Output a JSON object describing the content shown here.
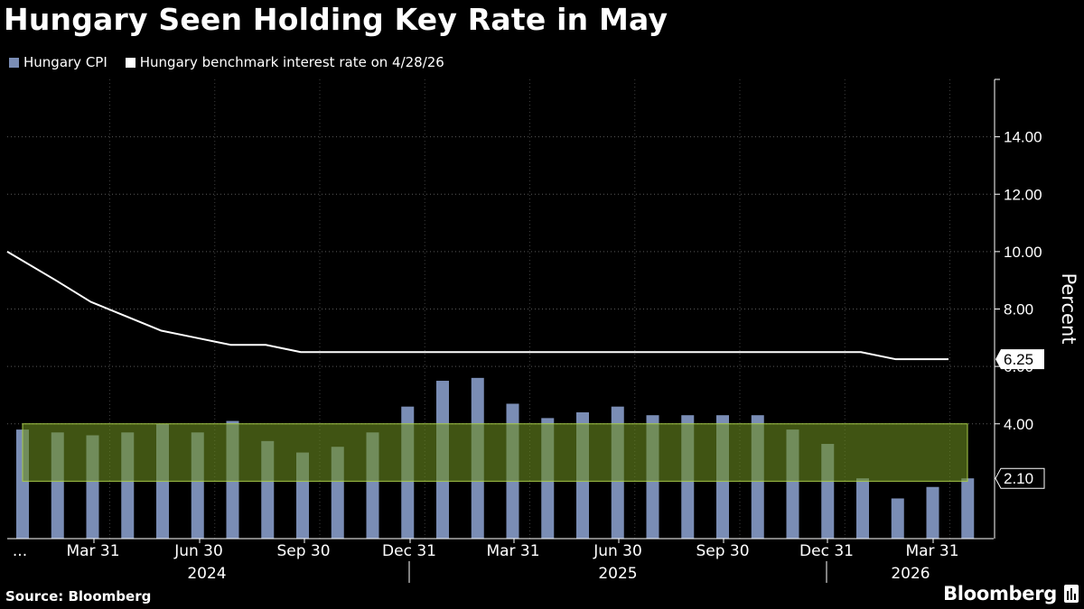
{
  "title": "Hungary Seen Holding Key Rate in May",
  "legend": [
    {
      "label": "Hungary CPI",
      "color": "#7a8db5"
    },
    {
      "label": "Hungary benchmark interest rate on 4/28/26",
      "color": "#ffffff"
    }
  ],
  "source": "Source: Bloomberg",
  "brand": "Bloomberg",
  "chart_data": {
    "type": "bar",
    "ylabel": "Percent",
    "ylim": [
      0,
      16
    ],
    "yticks": [
      "4.00",
      "6.00",
      "8.00",
      "10.00",
      "12.00",
      "14.00"
    ],
    "x_tick_labels": [
      "...",
      "Mar 31",
      "Jun 30",
      "Sep 30",
      "Dec 31",
      "Mar 31",
      "Jun 30",
      "Sep 30",
      "Dec 31",
      "Mar 31"
    ],
    "year_labels": [
      "2024",
      "2025",
      "2026"
    ],
    "target_band": {
      "low": 2,
      "high": 4,
      "color": "#6b8c1f"
    },
    "value_labels": {
      "rate": "6.25",
      "cpi": "2.10"
    },
    "series": [
      {
        "name": "Hungary CPI",
        "type": "bar",
        "color": "#7a8db5",
        "x": [
          "Jan 2024",
          "Feb 2024",
          "Mar 2024",
          "Apr 2024",
          "May 2024",
          "Jun 2024",
          "Jul 2024",
          "Aug 2024",
          "Sep 2024",
          "Oct 2024",
          "Nov 2024",
          "Dec 2024",
          "Jan 2025",
          "Feb 2025",
          "Mar 2025",
          "Apr 2025",
          "May 2025",
          "Jun 2025",
          "Jul 2025",
          "Aug 2025",
          "Sep 2025",
          "Oct 2025",
          "Nov 2025",
          "Dec 2025",
          "Jan 2026",
          "Feb 2026",
          "Mar 2026",
          "Apr 2026"
        ],
        "values": [
          3.8,
          3.7,
          3.6,
          3.7,
          4.0,
          3.7,
          4.1,
          3.4,
          3.0,
          3.2,
          3.7,
          4.6,
          5.5,
          5.6,
          4.7,
          4.2,
          4.4,
          4.6,
          4.3,
          4.3,
          4.3,
          4.3,
          3.8,
          3.3,
          2.1,
          1.4,
          1.8,
          2.1
        ]
      },
      {
        "name": "Hungary benchmark interest rate on 4/28/26",
        "type": "line",
        "color": "#ffffff",
        "x": [
          "Jan 2024",
          "Feb 2024",
          "Mar 2024",
          "Apr 2024",
          "May 2024",
          "Jun 2024",
          "Jul 2024",
          "Aug 2024",
          "Sep 2024",
          "Oct 2024",
          "Nov 2024",
          "Dec 2024",
          "Jan 2025",
          "Feb 2025",
          "Mar 2025",
          "Apr 2025",
          "May 2025",
          "Jun 2025",
          "Jul 2025",
          "Aug 2025",
          "Sep 2025",
          "Oct 2025",
          "Nov 2025",
          "Dec 2025",
          "Jan 2026",
          "Feb 2026",
          "Mar 2026",
          "Apr 2026"
        ],
        "values": [
          10.0,
          9.0,
          8.25,
          7.75,
          7.25,
          7.0,
          6.75,
          6.75,
          6.5,
          6.5,
          6.5,
          6.5,
          6.5,
          6.5,
          6.5,
          6.5,
          6.5,
          6.5,
          6.5,
          6.5,
          6.5,
          6.5,
          6.5,
          6.5,
          6.5,
          6.25,
          6.25,
          6.25
        ]
      }
    ]
  }
}
